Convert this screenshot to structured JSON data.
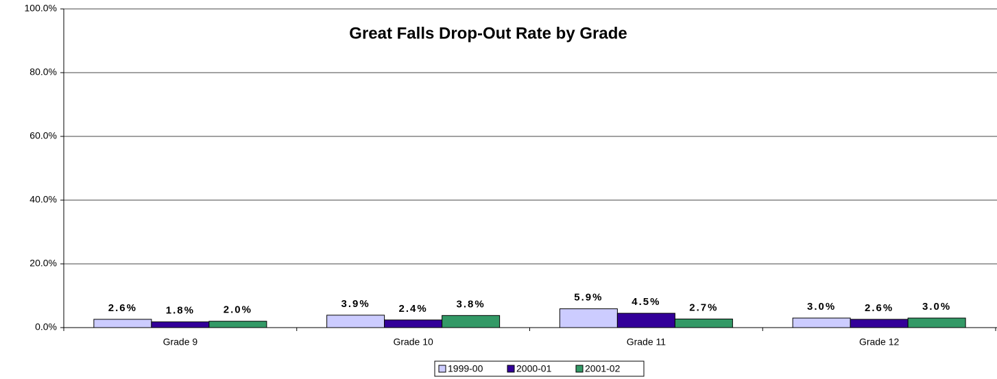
{
  "chart_data": {
    "type": "bar",
    "title": "Great Falls Drop-Out Rate by Grade",
    "categories": [
      "Grade 9",
      "Grade 10",
      "Grade 11",
      "Grade 12"
    ],
    "series": [
      {
        "name": "1999-00",
        "color": "#ccccff",
        "values": [
          2.6,
          3.9,
          5.9,
          3.0
        ],
        "value_labels": [
          "2.6%",
          "3.9%",
          "5.9%",
          "3.0%"
        ]
      },
      {
        "name": "2000-01",
        "color": "#330099",
        "values": [
          1.8,
          2.4,
          4.5,
          2.6
        ],
        "value_labels": [
          "1.8%",
          "2.4%",
          "4.5%",
          "2.6%"
        ]
      },
      {
        "name": "2001-02",
        "color": "#339966",
        "values": [
          2.0,
          3.8,
          2.7,
          3.0
        ],
        "value_labels": [
          "2.0%",
          "3.8%",
          "2.7%",
          "3.0%"
        ]
      }
    ],
    "ylim": [
      0,
      100
    ],
    "yticks": [
      {
        "value": 0,
        "label": "0.0%"
      },
      {
        "value": 20,
        "label": "20.0%"
      },
      {
        "value": 40,
        "label": "40.0%"
      },
      {
        "value": 60,
        "label": "60.0%"
      },
      {
        "value": 80,
        "label": "80.0%"
      },
      {
        "value": 100,
        "label": "100.0%"
      }
    ],
    "grid": true,
    "legend": "bottom"
  }
}
